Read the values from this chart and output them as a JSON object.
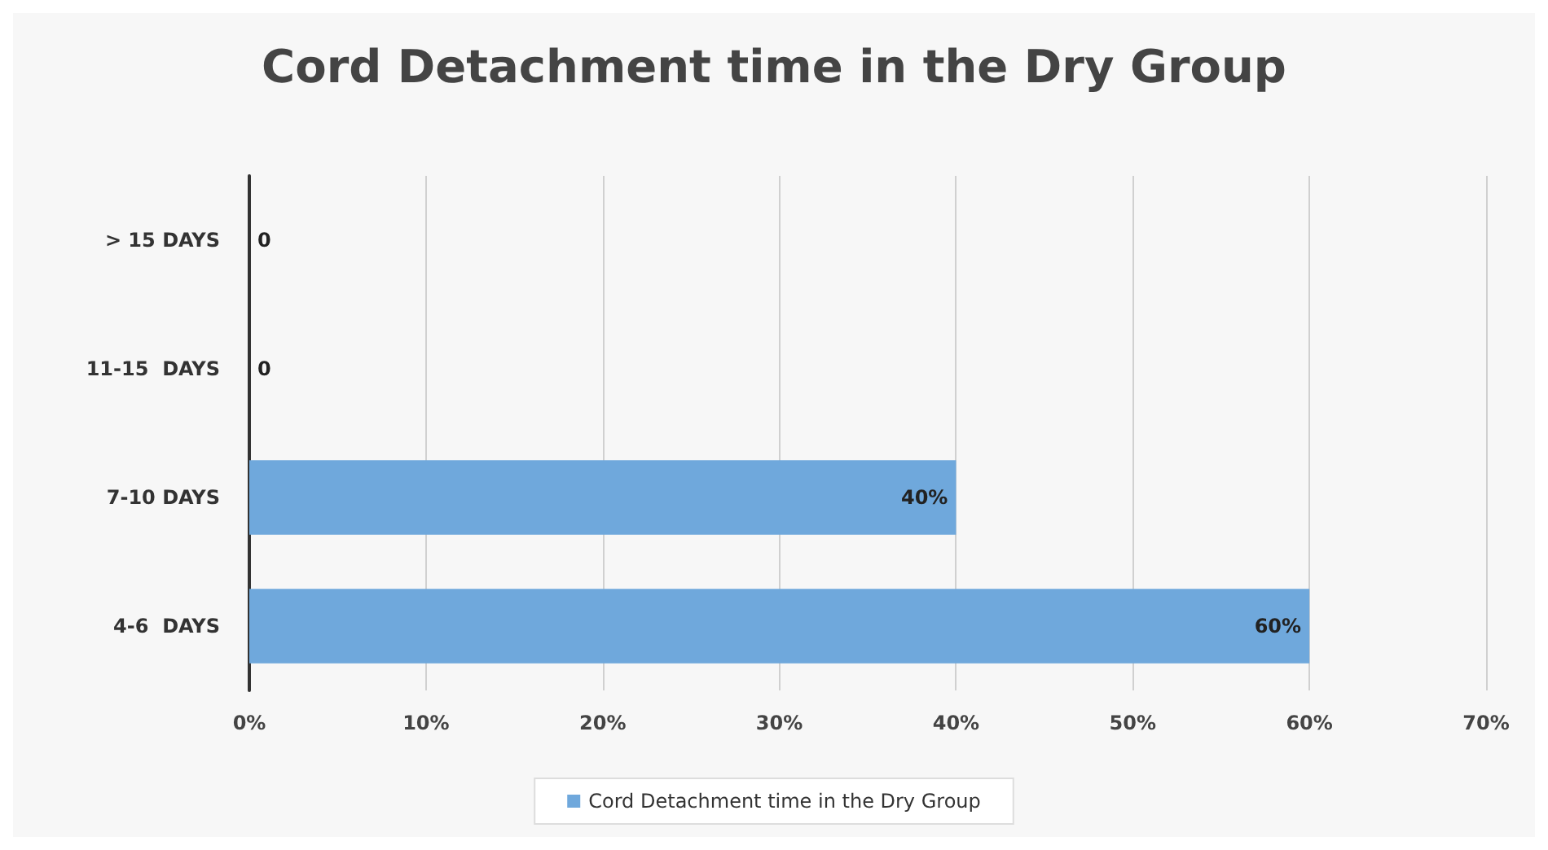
{
  "chart_data": {
    "type": "bar",
    "title": "Cord Detachment time in the Dry Group",
    "orientation": "horizontal",
    "categories": [
      "> 15 DAYS",
      "11-15  DAYS",
      "7-10 DAYS",
      "4-6  DAYS"
    ],
    "series": [
      {
        "name": "Cord Detachment time in the Dry Group",
        "color": "#6fa8dc",
        "values": [
          0,
          0,
          40,
          60
        ],
        "value_labels": [
          "0",
          "0",
          "40%",
          "60%"
        ]
      }
    ],
    "xlim": [
      0,
      70
    ],
    "xticks": [
      {
        "value": 0,
        "label": "0%"
      },
      {
        "value": 10,
        "label": "10%"
      },
      {
        "value": 20,
        "label": "20%"
      },
      {
        "value": 30,
        "label": "30%"
      },
      {
        "value": 40,
        "label": "40%"
      },
      {
        "value": 50,
        "label": "50%"
      },
      {
        "value": 60,
        "label": "60%"
      },
      {
        "value": 70,
        "label": "70%"
      }
    ],
    "grid": "x",
    "legend": "bottom"
  }
}
